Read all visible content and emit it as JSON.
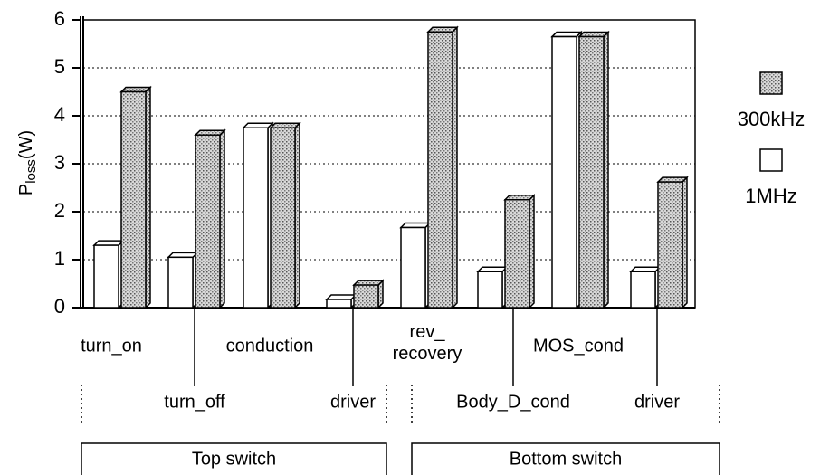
{
  "chart_data": {
    "type": "bar3d",
    "ylabel": "P",
    "ylabel_sub": "loss",
    "ylabel_unit": "(W)",
    "categories": [
      "turn_on",
      "turn_off",
      "conduction",
      "driver",
      "rev_\nrecovery",
      "Body_D_cond",
      "MOS_cond",
      "driver"
    ],
    "groups": [
      "Top switch",
      "Bottom switch"
    ],
    "series": [
      {
        "name": "1MHz",
        "color": "#ffffff",
        "values": [
          1.3,
          1.05,
          3.75,
          0.17,
          1.67,
          0.75,
          5.65,
          0.75
        ]
      },
      {
        "name": "300kHz",
        "color": "hatched",
        "values": [
          4.5,
          3.6,
          3.75,
          0.47,
          5.75,
          2.25,
          5.65,
          2.62
        ]
      }
    ],
    "legend_order": [
      1,
      0
    ],
    "ylim": [
      0,
      6
    ],
    "yticks": [
      0,
      1,
      2,
      3,
      4,
      5,
      6
    ],
    "grid": true
  }
}
